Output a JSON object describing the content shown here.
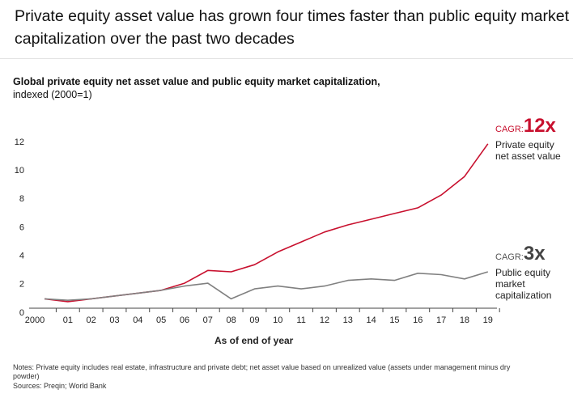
{
  "headline": "Private equity asset value has grown four times faster than public equity market capitalization over the past two decades",
  "chart_data": {
    "type": "line",
    "title": "Global private equity net asset value and public equity market capitalization,",
    "subtitle": "indexed (2000=1)",
    "x_label": "As of end of year",
    "categories": [
      "2000",
      "01",
      "02",
      "03",
      "04",
      "05",
      "06",
      "07",
      "08",
      "09",
      "10",
      "11",
      "12",
      "13",
      "14",
      "15",
      "16",
      "17",
      "18",
      "19"
    ],
    "series": [
      {
        "name": "Private equity net asset value",
        "color": "#c8102e",
        "cagr_prefix": "CAGR:",
        "cagr": "12x",
        "values": [
          1.0,
          0.8,
          1.0,
          1.2,
          1.4,
          1.6,
          2.1,
          3.0,
          2.9,
          3.4,
          4.3,
          5.0,
          5.7,
          6.2,
          6.6,
          7.0,
          7.4,
          8.3,
          9.6,
          11.9
        ]
      },
      {
        "name": "Public equity market capitalization",
        "color": "#808080",
        "cagr_prefix": "CAGR:",
        "cagr": "3x",
        "values": [
          1.0,
          0.9,
          1.0,
          1.2,
          1.4,
          1.6,
          1.9,
          2.1,
          1.0,
          1.7,
          1.9,
          1.7,
          1.9,
          2.3,
          2.4,
          2.3,
          2.8,
          2.7,
          2.4,
          2.9
        ]
      }
    ],
    "ylim": [
      0,
      12
    ],
    "yticks": [
      0,
      2,
      4,
      6,
      8,
      10,
      12
    ],
    "grid": false
  },
  "notes": "Notes: Private equity includes real estate, infrastructure and private debt; net asset value based on unrealized value (assets under management minus dry powder)",
  "sources": "Sources: Preqin; World Bank"
}
